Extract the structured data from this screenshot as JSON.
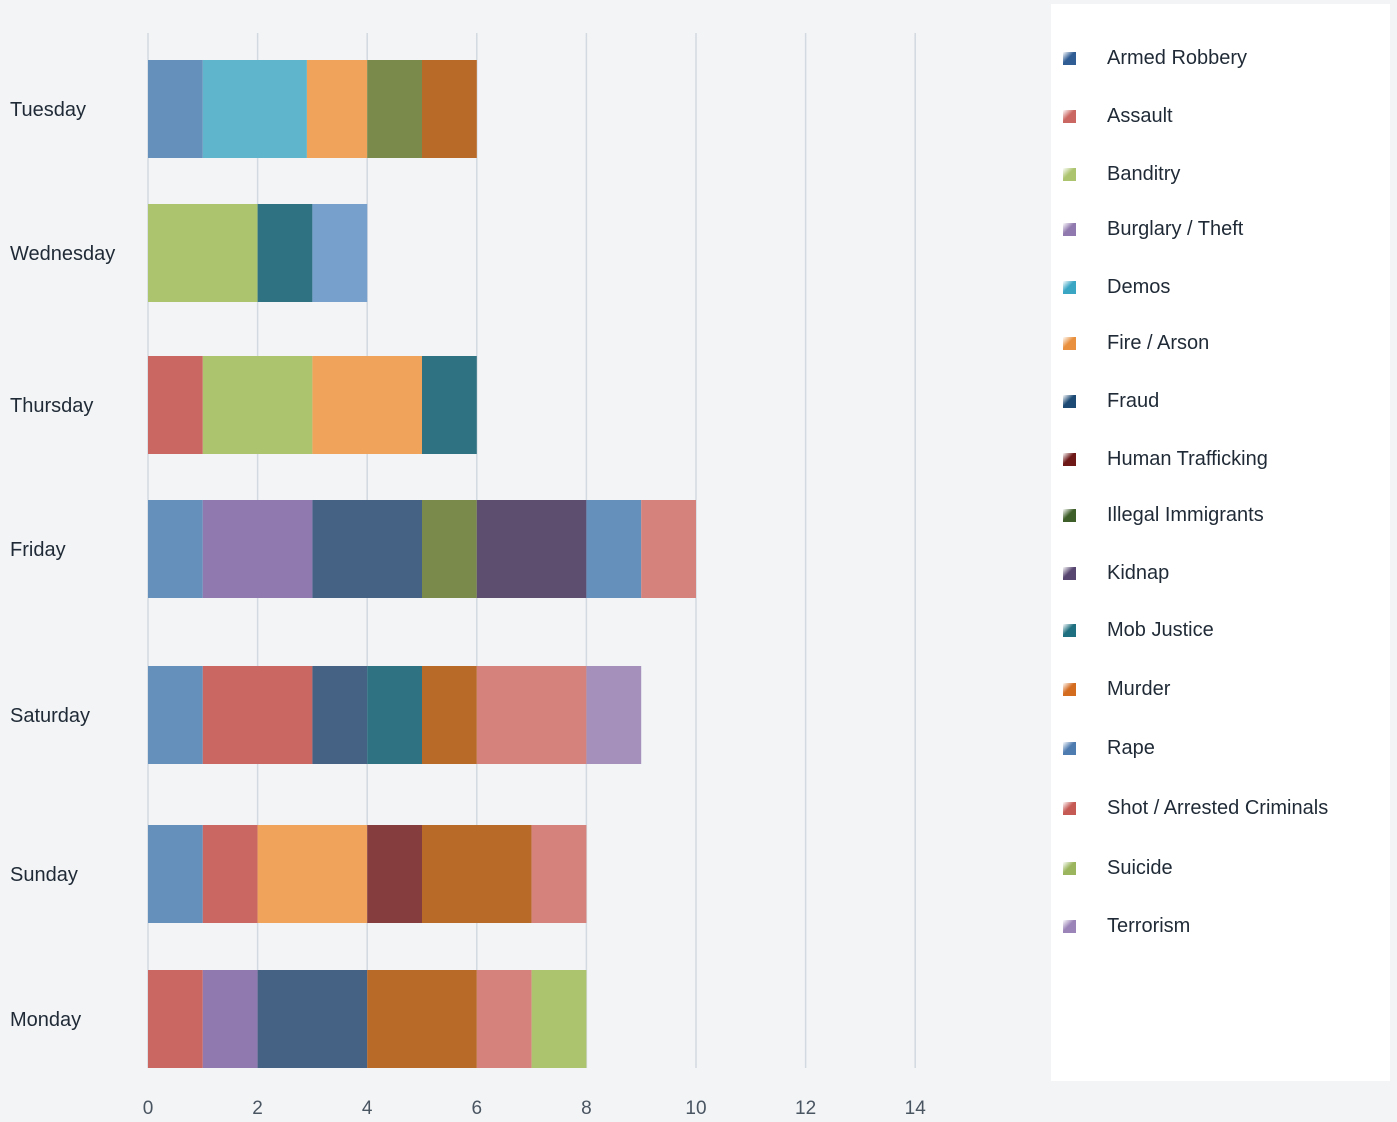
{
  "chart_data": {
    "type": "bar",
    "orientation": "horizontal",
    "stacked": true,
    "categories": [
      "Tuesday",
      "Wednesday",
      "Thursday",
      "Friday",
      "Saturday",
      "Sunday",
      "Monday"
    ],
    "x_ticks": [
      "0",
      "2",
      "4",
      "6",
      "8",
      "10",
      "12",
      "14"
    ],
    "xlim": [
      0,
      14
    ],
    "grid": true,
    "legend_position": "right",
    "colors": {
      "blue": "#6590bc",
      "red": "#cb6762",
      "green": "#adc46f",
      "purple": "#9079ae",
      "cyan": "#5eb5cc",
      "orange": "#f0a35a",
      "navy": "#456285",
      "maroon": "#853d3d",
      "olive": "#798a4a",
      "plum": "#5d4d6f",
      "teal": "#2f7282",
      "rust": "#b86a29",
      "lightblue": "#77a1cc",
      "salmon": "#d4827b",
      "lavender": "#a490bb"
    },
    "legend": [
      {
        "name": "Armed Robbery",
        "color": "#2f5d94"
      },
      {
        "name": "Assault",
        "color": "#cb6762"
      },
      {
        "name": "Banditry",
        "color": "#adc46f"
      },
      {
        "name": "Burglary / Theft",
        "color": "#9079ae"
      },
      {
        "name": "Demos",
        "color": "#3aa6c4"
      },
      {
        "name": "Fire / Arson",
        "color": "#e8903e"
      },
      {
        "name": "Fraud",
        "color": "#1c4a75"
      },
      {
        "name": "Human Trafficking",
        "color": "#6e1818"
      },
      {
        "name": "Illegal Immigrants",
        "color": "#3f5f2a"
      },
      {
        "name": "Kidnap",
        "color": "#574670"
      },
      {
        "name": "Mob Justice",
        "color": "#1f7080"
      },
      {
        "name": "Murder",
        "color": "#d46c20"
      },
      {
        "name": "Rape",
        "color": "#4f7cb0"
      },
      {
        "name": "Shot / Arrested Criminals",
        "color": "#c55a55"
      },
      {
        "name": "Suicide",
        "color": "#9ab55d"
      },
      {
        "name": "Terrorism",
        "color": "#9b84b8"
      }
    ],
    "bars": [
      {
        "category": "Tuesday",
        "segments": [
          {
            "value": 1,
            "color": "blue"
          },
          {
            "value": 1.9,
            "color": "cyan"
          },
          {
            "value": 1.1,
            "color": "orange"
          },
          {
            "value": 1,
            "color": "olive"
          },
          {
            "value": 1,
            "color": "rust"
          }
        ]
      },
      {
        "category": "Wednesday",
        "segments": [
          {
            "value": 2,
            "color": "green"
          },
          {
            "value": 1,
            "color": "teal"
          },
          {
            "value": 1,
            "color": "lightblue"
          }
        ]
      },
      {
        "category": "Thursday",
        "segments": [
          {
            "value": 1,
            "color": "red"
          },
          {
            "value": 2,
            "color": "green"
          },
          {
            "value": 2,
            "color": "orange"
          },
          {
            "value": 1,
            "color": "teal"
          }
        ]
      },
      {
        "category": "Friday",
        "segments": [
          {
            "value": 1,
            "color": "blue"
          },
          {
            "value": 2,
            "color": "purple"
          },
          {
            "value": 2,
            "color": "navy"
          },
          {
            "value": 1,
            "color": "olive"
          },
          {
            "value": 2,
            "color": "plum"
          },
          {
            "value": 1,
            "color": "blue"
          },
          {
            "value": 1,
            "color": "salmon"
          }
        ]
      },
      {
        "category": "Saturday",
        "segments": [
          {
            "value": 1,
            "color": "blue"
          },
          {
            "value": 2,
            "color": "red"
          },
          {
            "value": 1,
            "color": "navy"
          },
          {
            "value": 1,
            "color": "teal"
          },
          {
            "value": 1,
            "color": "rust"
          },
          {
            "value": 2,
            "color": "salmon"
          },
          {
            "value": 1,
            "color": "lavender"
          }
        ]
      },
      {
        "category": "Sunday",
        "segments": [
          {
            "value": 1,
            "color": "blue"
          },
          {
            "value": 1,
            "color": "red"
          },
          {
            "value": 2,
            "color": "orange"
          },
          {
            "value": 1,
            "color": "maroon"
          },
          {
            "value": 2,
            "color": "rust"
          },
          {
            "value": 1,
            "color": "salmon"
          }
        ]
      },
      {
        "category": "Monday",
        "segments": [
          {
            "value": 1,
            "color": "red"
          },
          {
            "value": 1,
            "color": "purple"
          },
          {
            "value": 2,
            "color": "navy"
          },
          {
            "value": 2,
            "color": "rust"
          },
          {
            "value": 1,
            "color": "salmon"
          },
          {
            "value": 1,
            "color": "green"
          }
        ]
      }
    ]
  }
}
